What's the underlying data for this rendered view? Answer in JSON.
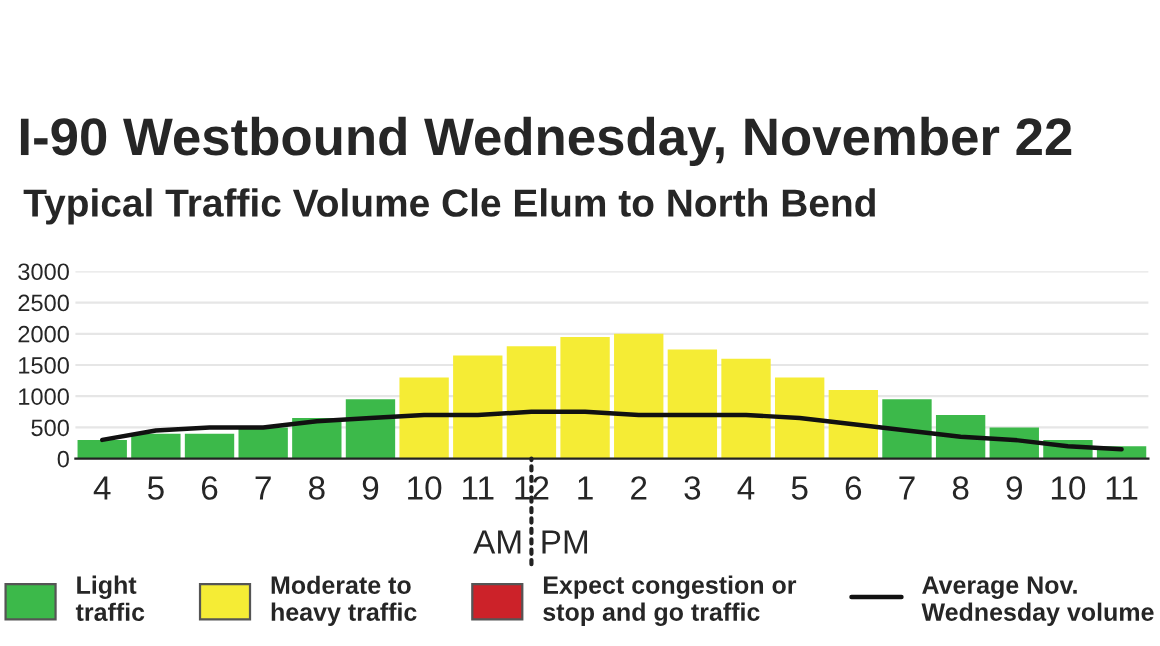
{
  "chart_data": {
    "type": "bar",
    "title": "I-90 Westbound Wednesday, November 22",
    "subtitle": "Typical Traffic Volume Cle Elum to North Bend",
    "categories": [
      "4",
      "5",
      "6",
      "7",
      "8",
      "9",
      "10",
      "11",
      "12",
      "1",
      "2",
      "3",
      "4",
      "5",
      "6",
      "7",
      "8",
      "9",
      "10",
      "11"
    ],
    "series": [
      {
        "name": "Light\ntraffic",
        "color": "#3cb94a",
        "values": [
          300,
          400,
          400,
          500,
          650,
          950,
          null,
          null,
          null,
          null,
          null,
          null,
          null,
          null,
          null,
          950,
          700,
          500,
          300,
          200
        ]
      },
      {
        "name": "Moderate to\nheavy traffic",
        "color": "#f5ec35",
        "values": [
          null,
          null,
          null,
          null,
          null,
          null,
          1300,
          1650,
          1800,
          1950,
          2000,
          1750,
          1600,
          1300,
          1100,
          null,
          null,
          null,
          null,
          null
        ]
      },
      {
        "name": "Expect congestion or\nstop and go traffic",
        "color": "#cc2229",
        "values": [
          null,
          null,
          null,
          null,
          null,
          null,
          null,
          null,
          null,
          null,
          null,
          null,
          null,
          null,
          null,
          null,
          null,
          null,
          null,
          null
        ]
      },
      {
        "name": "Average Nov.\nWednesday volume",
        "type": "line",
        "color": "#111111",
        "values": [
          300,
          450,
          500,
          500,
          600,
          650,
          700,
          700,
          750,
          750,
          700,
          700,
          700,
          650,
          550,
          450,
          350,
          300,
          200,
          150
        ]
      }
    ],
    "ylim": [
      0,
      3000
    ],
    "yticks": [
      0,
      500,
      1000,
      1500,
      2000,
      2500,
      3000
    ],
    "grid": "y",
    "legend": "bottom",
    "annotations": [
      "AM",
      "PM"
    ]
  }
}
